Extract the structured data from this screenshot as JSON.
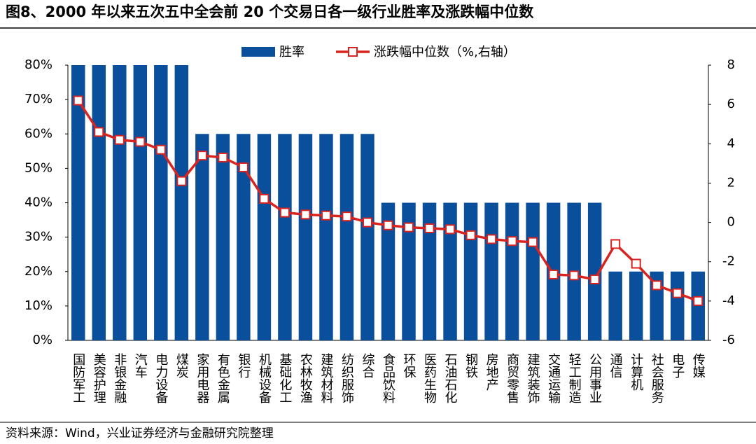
{
  "chart_data": {
    "type": "bar-line",
    "title": "图8、2000 年以来五次五中全会前 20 个交易日各一级行业胜率及涨跌幅中位数",
    "source": "资料来源：Wind，兴业证券经济与金融研究院整理",
    "categories": [
      "国防军工",
      "美容护理",
      "非银金融",
      "汽车",
      "电力设备",
      "煤炭",
      "家用电器",
      "有色金属",
      "银行",
      "机械设备",
      "基础化工",
      "农林牧渔",
      "建筑材料",
      "纺织服饰",
      "综合",
      "食品饮料",
      "环保",
      "医药生物",
      "石油石化",
      "钢铁",
      "房地产",
      "商贸零售",
      "建筑装饰",
      "交通运输",
      "轻工制造",
      "公用事业",
      "通信",
      "计算机",
      "社会服务",
      "电子",
      "传媒"
    ],
    "series": [
      {
        "name": "胜率",
        "type": "bar",
        "color": "#0a4f9c",
        "values": [
          80,
          80,
          80,
          80,
          80,
          80,
          60,
          60,
          60,
          60,
          60,
          60,
          60,
          60,
          60,
          40,
          40,
          40,
          40,
          40,
          40,
          40,
          40,
          40,
          40,
          40,
          20,
          20,
          20,
          20,
          20
        ]
      },
      {
        "name": "涨跌幅中位数（%,右轴）",
        "type": "line",
        "axis": "y2",
        "color": "#d9231e",
        "values": [
          6.2,
          4.6,
          4.2,
          4.1,
          3.7,
          2.1,
          3.4,
          3.3,
          2.8,
          1.2,
          0.5,
          0.4,
          0.35,
          0.3,
          0.0,
          -0.15,
          -0.25,
          -0.3,
          -0.35,
          -0.65,
          -0.85,
          -0.95,
          -1.0,
          -2.65,
          -2.7,
          -2.9,
          -1.1,
          -2.1,
          -3.2,
          -3.6,
          -4.0
        ]
      }
    ],
    "ylim": [
      0,
      80
    ],
    "yticks": [
      {
        "value": 0,
        "label": "0%"
      },
      {
        "value": 10,
        "label": "10%"
      },
      {
        "value": 20,
        "label": "20%"
      },
      {
        "value": 30,
        "label": "30%"
      },
      {
        "value": 40,
        "label": "40%"
      },
      {
        "value": 50,
        "label": "50%"
      },
      {
        "value": 60,
        "label": "60%"
      },
      {
        "value": 70,
        "label": "70%"
      },
      {
        "value": 80,
        "label": "80%"
      }
    ],
    "y2lim": [
      -6,
      8
    ],
    "y2ticks": [
      -6,
      -4,
      -2,
      0,
      2,
      4,
      6,
      8
    ],
    "legend": "top"
  }
}
